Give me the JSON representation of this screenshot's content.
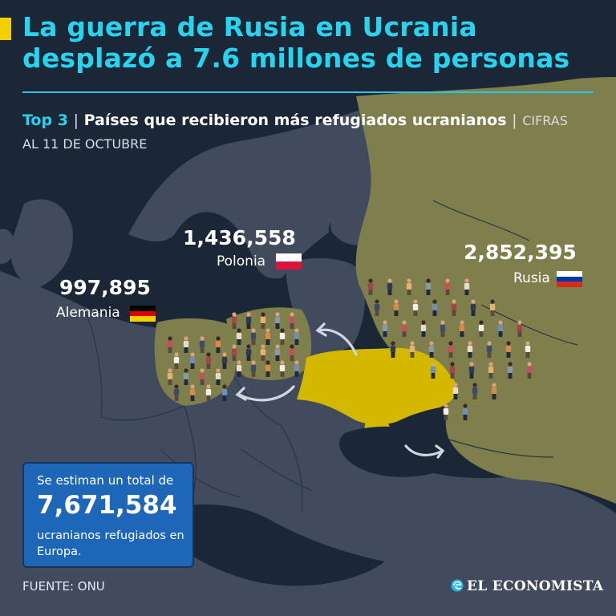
{
  "title": {
    "line1": "La guerra de Rusia en Ucrania",
    "line2": "desplazó a 7.6 millones de personas"
  },
  "subtitle": {
    "top_label": "Top 3",
    "separator": "|",
    "main": "Países que recibieron más refugiados ucranianos",
    "date": "CIFRAS AL 11 DE OCTUBRE"
  },
  "countries": {
    "germany": {
      "value": "997,895",
      "name": "Alemania"
    },
    "poland": {
      "value": "1,436,558",
      "name": "Polonia"
    },
    "russia": {
      "value": "2,852,395",
      "name": "Rusia"
    }
  },
  "total": {
    "intro": "Se estiman un total de",
    "value": "7,671,584",
    "description": "ucranianos refugiados en Europa."
  },
  "source": "FUENTE: ONU",
  "brand": "EL ECONOMISTA",
  "colors": {
    "background": "#1b2637",
    "land": "#414b5d",
    "highlight_land": "#7f7e4d",
    "ukraine": "#d4b800",
    "title": "#27d3ee",
    "accent_bar": "#f2d000",
    "total_box": "#1d66b8"
  },
  "icons": [
    "people-icons",
    "arrow-icons",
    "flag-germany-icon",
    "flag-poland-icon",
    "flag-russia-icon",
    "economista-logo-icon"
  ]
}
